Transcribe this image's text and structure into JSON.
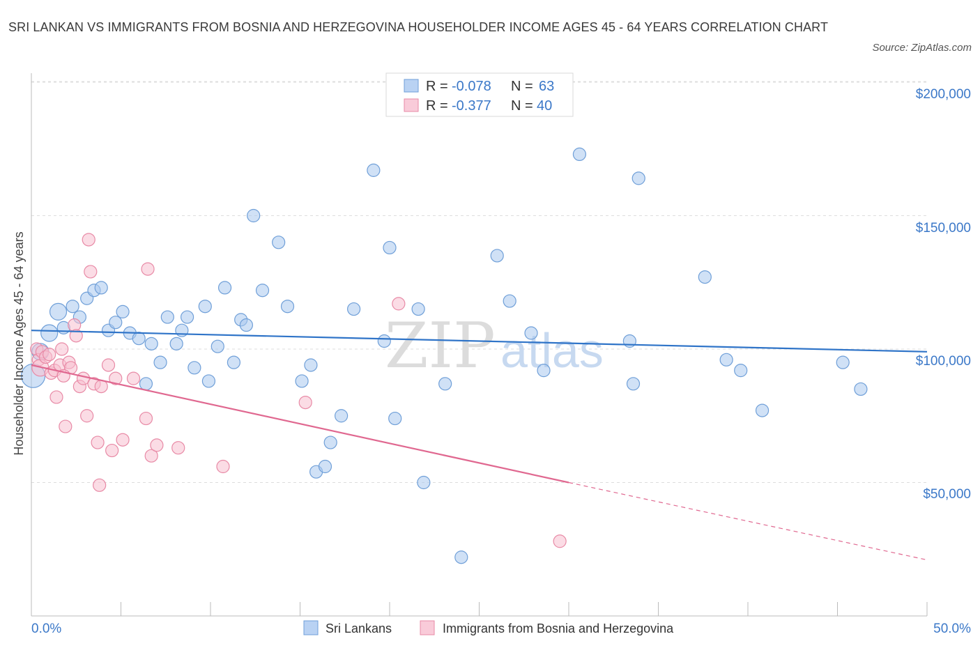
{
  "header": {
    "title": "SRI LANKAN VS IMMIGRANTS FROM BOSNIA AND HERZEGOVINA HOUSEHOLDER INCOME AGES 45 - 64 YEARS CORRELATION CHART",
    "source": "Source: ZipAtlas.com"
  },
  "watermark": {
    "zip": "ZIP",
    "atlas": "atlas"
  },
  "colors": {
    "blue_fill": "#a9c8ef",
    "blue_stroke": "#6f9fd8",
    "blue_line": "#2f74c8",
    "pink_fill": "#f7bfcf",
    "pink_stroke": "#e88aa6",
    "pink_line": "#e06890",
    "grid": "#dddddd",
    "tick_text": "#3b78c8"
  },
  "legend": {
    "rows": [
      {
        "r_label": "R = ",
        "r_value": "-0.078",
        "n_label": "N = ",
        "n_value": "63"
      },
      {
        "r_label": "R = ",
        "r_value": "-0.377",
        "n_label": "N = ",
        "n_value": "40"
      }
    ]
  },
  "chart_data": {
    "type": "scatter",
    "xlabel": "",
    "ylabel": "Householder Income Ages 45 - 64 years",
    "xlim": [
      0,
      50
    ],
    "ylim": [
      0,
      215000
    ],
    "x_tick_labels": [
      "0.0%",
      "50.0%"
    ],
    "y_ticks": [
      50000,
      100000,
      150000,
      200000
    ],
    "y_tick_labels": [
      "$50,000",
      "$100,000",
      "$150,000",
      "$200,000"
    ],
    "grid": true,
    "legend_position": "top-center",
    "series": [
      {
        "name": "Sri Lankans",
        "color": "#a9c8ef",
        "r": -0.078,
        "n": 63,
        "trend": {
          "x": [
            0,
            50
          ],
          "y": [
            107000,
            99000
          ]
        },
        "points": [
          {
            "x": 0.1,
            "y": 90000,
            "s": 3
          },
          {
            "x": 0.5,
            "y": 99000,
            "s": 2
          },
          {
            "x": 1.0,
            "y": 106000,
            "s": 2
          },
          {
            "x": 1.5,
            "y": 114000,
            "s": 2
          },
          {
            "x": 1.8,
            "y": 108000,
            "s": 1
          },
          {
            "x": 2.3,
            "y": 116000,
            "s": 1
          },
          {
            "x": 2.7,
            "y": 112000,
            "s": 1
          },
          {
            "x": 3.1,
            "y": 119000,
            "s": 1
          },
          {
            "x": 3.5,
            "y": 122000,
            "s": 1
          },
          {
            "x": 3.9,
            "y": 123000,
            "s": 1
          },
          {
            "x": 4.3,
            "y": 107000,
            "s": 1
          },
          {
            "x": 4.7,
            "y": 110000,
            "s": 1
          },
          {
            "x": 5.1,
            "y": 114000,
            "s": 1
          },
          {
            "x": 5.5,
            "y": 106000,
            "s": 1
          },
          {
            "x": 6.0,
            "y": 104000,
            "s": 1
          },
          {
            "x": 6.4,
            "y": 87000,
            "s": 1
          },
          {
            "x": 6.7,
            "y": 102000,
            "s": 1
          },
          {
            "x": 7.2,
            "y": 95000,
            "s": 1
          },
          {
            "x": 7.6,
            "y": 112000,
            "s": 1
          },
          {
            "x": 8.1,
            "y": 102000,
            "s": 1
          },
          {
            "x": 8.4,
            "y": 107000,
            "s": 1
          },
          {
            "x": 8.7,
            "y": 112000,
            "s": 1
          },
          {
            "x": 9.1,
            "y": 93000,
            "s": 1
          },
          {
            "x": 9.7,
            "y": 116000,
            "s": 1
          },
          {
            "x": 9.9,
            "y": 88000,
            "s": 1
          },
          {
            "x": 10.4,
            "y": 101000,
            "s": 1
          },
          {
            "x": 10.8,
            "y": 123000,
            "s": 1
          },
          {
            "x": 11.3,
            "y": 95000,
            "s": 1
          },
          {
            "x": 11.7,
            "y": 111000,
            "s": 1
          },
          {
            "x": 12.0,
            "y": 109000,
            "s": 1
          },
          {
            "x": 12.4,
            "y": 150000,
            "s": 1
          },
          {
            "x": 12.9,
            "y": 122000,
            "s": 1
          },
          {
            "x": 13.8,
            "y": 140000,
            "s": 1
          },
          {
            "x": 14.3,
            "y": 116000,
            "s": 1
          },
          {
            "x": 15.1,
            "y": 88000,
            "s": 1
          },
          {
            "x": 15.6,
            "y": 94000,
            "s": 1
          },
          {
            "x": 15.9,
            "y": 54000,
            "s": 1
          },
          {
            "x": 16.4,
            "y": 56000,
            "s": 1
          },
          {
            "x": 16.7,
            "y": 65000,
            "s": 1
          },
          {
            "x": 17.3,
            "y": 75000,
            "s": 1
          },
          {
            "x": 18.0,
            "y": 115000,
            "s": 1
          },
          {
            "x": 19.1,
            "y": 167000,
            "s": 1
          },
          {
            "x": 19.7,
            "y": 103000,
            "s": 1
          },
          {
            "x": 20.0,
            "y": 138000,
            "s": 1
          },
          {
            "x": 20.3,
            "y": 74000,
            "s": 1
          },
          {
            "x": 21.6,
            "y": 115000,
            "s": 1
          },
          {
            "x": 21.9,
            "y": 50000,
            "s": 1
          },
          {
            "x": 23.1,
            "y": 87000,
            "s": 1
          },
          {
            "x": 24.0,
            "y": 22000,
            "s": 1
          },
          {
            "x": 26.0,
            "y": 135000,
            "s": 1
          },
          {
            "x": 26.7,
            "y": 118000,
            "s": 1
          },
          {
            "x": 27.9,
            "y": 106000,
            "s": 1
          },
          {
            "x": 28.6,
            "y": 92000,
            "s": 1
          },
          {
            "x": 30.6,
            "y": 173000,
            "s": 1
          },
          {
            "x": 33.4,
            "y": 103000,
            "s": 1
          },
          {
            "x": 33.6,
            "y": 87000,
            "s": 1
          },
          {
            "x": 33.9,
            "y": 164000,
            "s": 1
          },
          {
            "x": 37.6,
            "y": 127000,
            "s": 1
          },
          {
            "x": 38.8,
            "y": 96000,
            "s": 1
          },
          {
            "x": 39.6,
            "y": 92000,
            "s": 1
          },
          {
            "x": 40.8,
            "y": 77000,
            "s": 1
          },
          {
            "x": 45.3,
            "y": 95000,
            "s": 1
          },
          {
            "x": 46.3,
            "y": 85000,
            "s": 1
          }
        ]
      },
      {
        "name": "Immigrants from Bosnia and Herzegovina",
        "color": "#f7bfcf",
        "r": -0.377,
        "n": 40,
        "trend": {
          "x": [
            0,
            30
          ],
          "y": [
            94000,
            50000
          ]
        },
        "trend_dashed": {
          "x": [
            30,
            50
          ],
          "y": [
            50000,
            21000
          ]
        },
        "points": [
          {
            "x": 0.3,
            "y": 100000,
            "s": 1
          },
          {
            "x": 0.4,
            "y": 96000,
            "s": 1
          },
          {
            "x": 0.5,
            "y": 93000,
            "s": 2
          },
          {
            "x": 0.6,
            "y": 99000,
            "s": 1
          },
          {
            "x": 0.8,
            "y": 97000,
            "s": 1
          },
          {
            "x": 1.1,
            "y": 91000,
            "s": 1
          },
          {
            "x": 1.3,
            "y": 92000,
            "s": 1
          },
          {
            "x": 1.4,
            "y": 82000,
            "s": 1
          },
          {
            "x": 1.6,
            "y": 94000,
            "s": 1
          },
          {
            "x": 1.7,
            "y": 100000,
            "s": 1
          },
          {
            "x": 1.9,
            "y": 71000,
            "s": 1
          },
          {
            "x": 2.1,
            "y": 95000,
            "s": 1
          },
          {
            "x": 2.2,
            "y": 93000,
            "s": 1
          },
          {
            "x": 2.4,
            "y": 109000,
            "s": 1
          },
          {
            "x": 2.5,
            "y": 105000,
            "s": 1
          },
          {
            "x": 2.7,
            "y": 86000,
            "s": 1
          },
          {
            "x": 2.9,
            "y": 89000,
            "s": 1
          },
          {
            "x": 3.1,
            "y": 75000,
            "s": 1
          },
          {
            "x": 3.2,
            "y": 141000,
            "s": 1
          },
          {
            "x": 3.3,
            "y": 129000,
            "s": 1
          },
          {
            "x": 3.5,
            "y": 87000,
            "s": 1
          },
          {
            "x": 3.7,
            "y": 65000,
            "s": 1
          },
          {
            "x": 3.8,
            "y": 49000,
            "s": 1
          },
          {
            "x": 3.9,
            "y": 86000,
            "s": 1
          },
          {
            "x": 4.3,
            "y": 94000,
            "s": 1
          },
          {
            "x": 4.5,
            "y": 62000,
            "s": 1
          },
          {
            "x": 4.7,
            "y": 89000,
            "s": 1
          },
          {
            "x": 5.1,
            "y": 66000,
            "s": 1
          },
          {
            "x": 5.7,
            "y": 89000,
            "s": 1
          },
          {
            "x": 6.4,
            "y": 74000,
            "s": 1
          },
          {
            "x": 6.5,
            "y": 130000,
            "s": 1
          },
          {
            "x": 6.7,
            "y": 60000,
            "s": 1
          },
          {
            "x": 7.0,
            "y": 64000,
            "s": 1
          },
          {
            "x": 8.2,
            "y": 63000,
            "s": 1
          },
          {
            "x": 10.7,
            "y": 56000,
            "s": 1
          },
          {
            "x": 15.3,
            "y": 80000,
            "s": 1
          },
          {
            "x": 20.5,
            "y": 117000,
            "s": 1
          },
          {
            "x": 29.5,
            "y": 28000,
            "s": 1
          },
          {
            "x": 1.0,
            "y": 98000,
            "s": 1
          },
          {
            "x": 1.8,
            "y": 90000,
            "s": 1
          }
        ]
      }
    ]
  }
}
